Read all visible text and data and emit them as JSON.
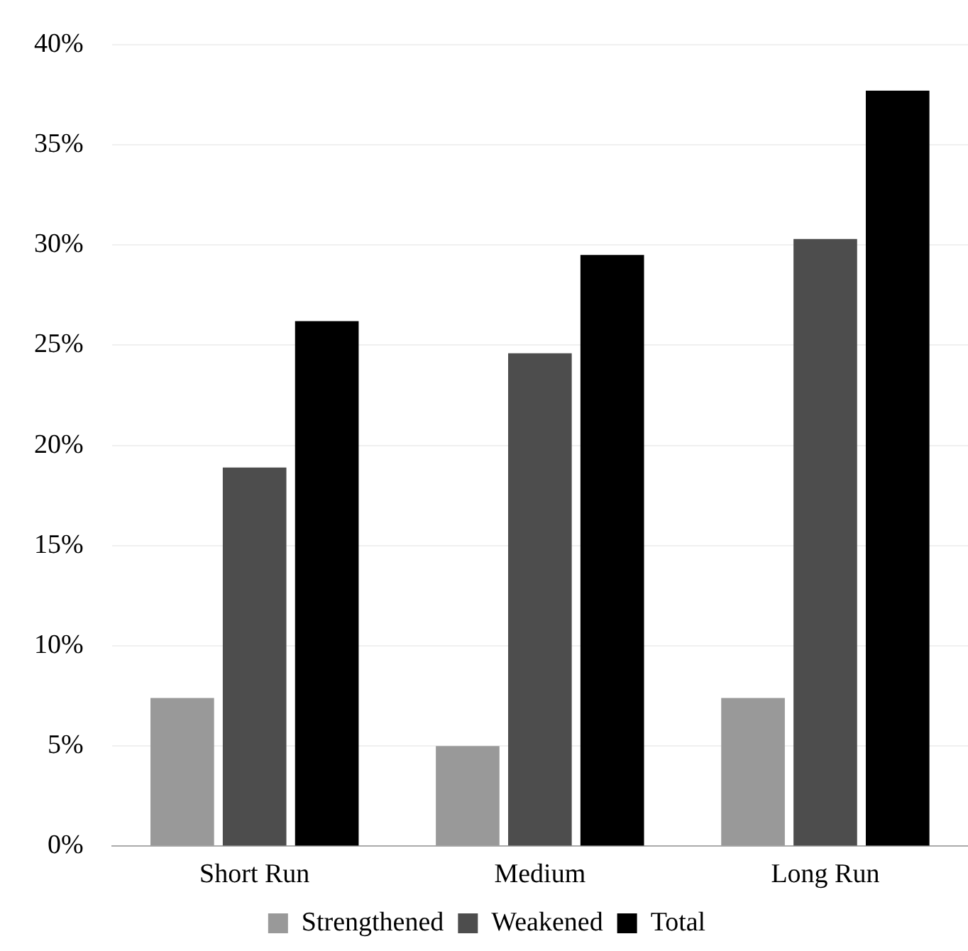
{
  "chart_data": {
    "type": "bar",
    "categories": [
      "Short Run",
      "Medium",
      "Long Run"
    ],
    "series": [
      {
        "name": "Strengthened",
        "color": "#999999",
        "values": [
          7.4,
          5.0,
          7.4
        ]
      },
      {
        "name": "Weakened",
        "color": "#4d4d4d",
        "values": [
          18.9,
          24.6,
          30.3
        ]
      },
      {
        "name": "Total",
        "color": "#000000",
        "values": [
          26.2,
          29.5,
          37.7
        ]
      }
    ],
    "ylim": [
      0,
      40
    ],
    "yticks": [
      {
        "value": 0,
        "label": "0%"
      },
      {
        "value": 5,
        "label": "5%"
      },
      {
        "value": 10,
        "label": "10%"
      },
      {
        "value": 15,
        "label": "15%"
      },
      {
        "value": 20,
        "label": "20%"
      },
      {
        "value": 25,
        "label": "25%"
      },
      {
        "value": 30,
        "label": "30%"
      },
      {
        "value": 35,
        "label": "35%"
      },
      {
        "value": 40,
        "label": "40%"
      }
    ],
    "grid": "y",
    "legend": "bottom"
  }
}
